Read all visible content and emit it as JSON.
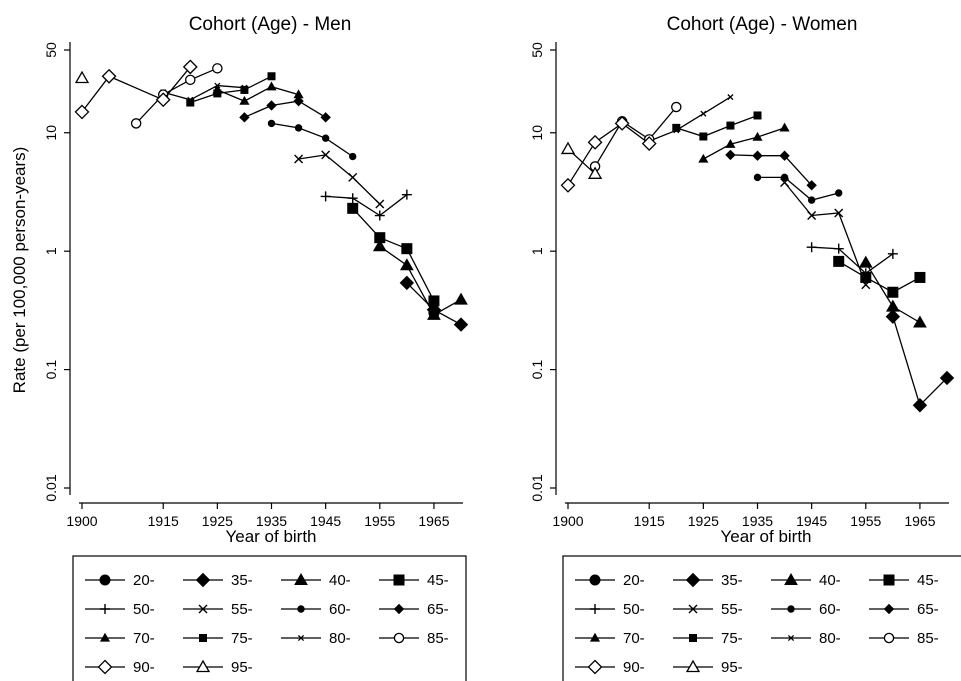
{
  "chart_data": [
    {
      "type": "line",
      "title": "Cohort (Age) - Men",
      "xlabel": "Year of birth",
      "ylabel": "Rate (per 100,000 person-years)",
      "yscale": "log",
      "xlim": [
        1900,
        1970
      ],
      "ylim": [
        0.01,
        50
      ],
      "xticks": [
        "1900",
        "1915",
        "1925",
        "1935",
        "1945",
        "1955",
        "1965"
      ],
      "xtick_values": [
        1900,
        1915,
        1925,
        1935,
        1945,
        1955,
        1965
      ],
      "yticks": [
        "0.01",
        "0.1",
        "1",
        "10",
        "50"
      ],
      "ytick_values": [
        0.01,
        0.1,
        1,
        10,
        50
      ],
      "legend_position": "bottom",
      "series": [
        {
          "name": "20-",
          "marker": "circle-filled",
          "size": "large",
          "points": [
            [
              1965,
              0.3
            ]
          ]
        },
        {
          "name": "35-",
          "marker": "diamond-filled",
          "size": "large",
          "points": [
            [
              1960,
              0.54
            ],
            [
              1965,
              0.32
            ],
            [
              1970,
              0.24
            ]
          ]
        },
        {
          "name": "40-",
          "marker": "triangle-filled",
          "size": "large",
          "points": [
            [
              1955,
              1.1
            ],
            [
              1960,
              0.76
            ],
            [
              1965,
              0.29
            ],
            [
              1970,
              0.39
            ]
          ]
        },
        {
          "name": "45-",
          "marker": "square-filled",
          "size": "large",
          "points": [
            [
              1950,
              2.3
            ],
            [
              1955,
              1.3
            ],
            [
              1960,
              1.05
            ],
            [
              1965,
              0.38
            ]
          ]
        },
        {
          "name": "50-",
          "marker": "plus",
          "size": "small",
          "points": [
            [
              1945,
              2.9
            ],
            [
              1950,
              2.8
            ],
            [
              1955,
              2.0
            ],
            [
              1960,
              3.0
            ]
          ]
        },
        {
          "name": "55-",
          "marker": "cross",
          "size": "small",
          "points": [
            [
              1940,
              6.0
            ],
            [
              1945,
              6.5
            ],
            [
              1950,
              4.2
            ],
            [
              1955,
              2.5
            ]
          ]
        },
        {
          "name": "60-",
          "marker": "circle-filled",
          "size": "small",
          "points": [
            [
              1935,
              12
            ],
            [
              1940,
              11
            ],
            [
              1945,
              9
            ],
            [
              1950,
              6.3
            ]
          ]
        },
        {
          "name": "65-",
          "marker": "diamond-filled",
          "size": "small",
          "points": [
            [
              1930,
              13.5
            ],
            [
              1935,
              17
            ],
            [
              1940,
              18.5
            ],
            [
              1945,
              13.5
            ]
          ]
        },
        {
          "name": "70-",
          "marker": "triangle-filled",
          "size": "small",
          "points": [
            [
              1925,
              23
            ],
            [
              1930,
              18.5
            ],
            [
              1935,
              24.5
            ],
            [
              1940,
              21
            ]
          ]
        },
        {
          "name": "75-",
          "marker": "square-filled",
          "size": "small",
          "points": [
            [
              1920,
              18
            ],
            [
              1925,
              21.5
            ],
            [
              1930,
              23
            ],
            [
              1935,
              30
            ]
          ]
        },
        {
          "name": "80-",
          "marker": "x-small",
          "size": "small",
          "points": [
            [
              1915,
              22
            ],
            [
              1920,
              19
            ],
            [
              1925,
              25
            ],
            [
              1930,
              24
            ]
          ]
        },
        {
          "name": "85-",
          "marker": "circle-hollow",
          "size": "large",
          "points": [
            [
              1910,
              12
            ],
            [
              1915,
              21
            ],
            [
              1920,
              28
            ],
            [
              1925,
              35
            ]
          ]
        },
        {
          "name": "90-",
          "marker": "diamond-hollow",
          "size": "large",
          "points": [
            [
              1900,
              15
            ],
            [
              1905,
              30
            ],
            [
              1915,
              19
            ],
            [
              1920,
              36
            ]
          ]
        },
        {
          "name": "95-",
          "marker": "triangle-hollow",
          "size": "large",
          "points": [
            [
              1900,
              29
            ]
          ]
        }
      ]
    },
    {
      "type": "line",
      "title": "Cohort (Age) - Women",
      "xlabel": "Year of birth",
      "ylabel": "",
      "yscale": "log",
      "xlim": [
        1900,
        1970
      ],
      "ylim": [
        0.01,
        50
      ],
      "xticks": [
        "1900",
        "1915",
        "1925",
        "1935",
        "1945",
        "1955",
        "1965"
      ],
      "xtick_values": [
        1900,
        1915,
        1925,
        1935,
        1945,
        1955,
        1965
      ],
      "yticks": [
        "0.01",
        "0.1",
        "1",
        "10",
        "50"
      ],
      "ytick_values": [
        0.01,
        0.1,
        1,
        10,
        50
      ],
      "legend_position": "bottom",
      "series": [
        {
          "name": "20-",
          "marker": "circle-filled",
          "size": "large",
          "points": []
        },
        {
          "name": "35-",
          "marker": "diamond-filled",
          "size": "large",
          "points": [
            [
              1960,
              0.28
            ],
            [
              1965,
              0.05
            ],
            [
              1970,
              0.085
            ]
          ]
        },
        {
          "name": "40-",
          "marker": "triangle-filled",
          "size": "large",
          "points": [
            [
              1955,
              0.8
            ],
            [
              1960,
              0.34
            ],
            [
              1965,
              0.25
            ]
          ]
        },
        {
          "name": "45-",
          "marker": "square-filled",
          "size": "large",
          "points": [
            [
              1950,
              0.82
            ],
            [
              1955,
              0.6
            ],
            [
              1960,
              0.45
            ],
            [
              1965,
              0.6
            ]
          ]
        },
        {
          "name": "50-",
          "marker": "plus",
          "size": "small",
          "points": [
            [
              1945,
              1.08
            ],
            [
              1950,
              1.05
            ],
            [
              1955,
              0.65
            ],
            [
              1960,
              0.95
            ]
          ]
        },
        {
          "name": "55-",
          "marker": "cross",
          "size": "small",
          "points": [
            [
              1940,
              3.8
            ],
            [
              1945,
              2.0
            ],
            [
              1950,
              2.1
            ],
            [
              1955,
              0.52
            ]
          ]
        },
        {
          "name": "60-",
          "marker": "circle-filled",
          "size": "small",
          "points": [
            [
              1935,
              4.2
            ],
            [
              1940,
              4.2
            ],
            [
              1945,
              2.7
            ],
            [
              1950,
              3.1
            ]
          ]
        },
        {
          "name": "65-",
          "marker": "diamond-filled",
          "size": "small",
          "points": [
            [
              1930,
              6.5
            ],
            [
              1935,
              6.4
            ],
            [
              1940,
              6.4
            ],
            [
              1945,
              3.6
            ]
          ]
        },
        {
          "name": "70-",
          "marker": "triangle-filled",
          "size": "small",
          "points": [
            [
              1925,
              6.0
            ],
            [
              1930,
              8.0
            ],
            [
              1935,
              9.2
            ],
            [
              1940,
              11
            ]
          ]
        },
        {
          "name": "75-",
          "marker": "square-filled",
          "size": "small",
          "points": [
            [
              1920,
              11
            ],
            [
              1925,
              9.3
            ],
            [
              1930,
              11.5
            ],
            [
              1935,
              14
            ]
          ]
        },
        {
          "name": "80-",
          "marker": "x-small",
          "size": "small",
          "points": [
            [
              1915,
              8.5
            ],
            [
              1920,
              10.5
            ],
            [
              1925,
              14.5
            ],
            [
              1930,
              20
            ]
          ]
        },
        {
          "name": "85-",
          "marker": "circle-hollow",
          "size": "large",
          "points": [
            [
              1905,
              5.2
            ],
            [
              1910,
              12.5
            ],
            [
              1915,
              8.8
            ],
            [
              1920,
              16.5
            ]
          ]
        },
        {
          "name": "90-",
          "marker": "diamond-hollow",
          "size": "large",
          "points": [
            [
              1900,
              3.6
            ],
            [
              1905,
              8.3
            ],
            [
              1910,
              12
            ],
            [
              1915,
              8.1
            ]
          ]
        },
        {
          "name": "95-",
          "marker": "triangle-hollow",
          "size": "large",
          "points": [
            [
              1900,
              7.3
            ],
            [
              1905,
              4.5
            ]
          ]
        }
      ]
    }
  ]
}
